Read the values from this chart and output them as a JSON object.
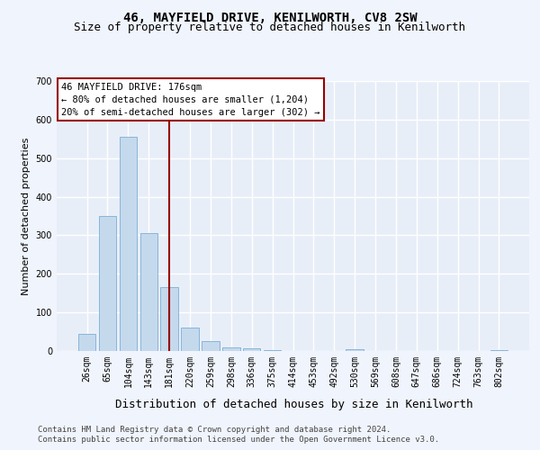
{
  "title1": "46, MAYFIELD DRIVE, KENILWORTH, CV8 2SW",
  "title2": "Size of property relative to detached houses in Kenilworth",
  "xlabel": "Distribution of detached houses by size in Kenilworth",
  "ylabel": "Number of detached properties",
  "categories": [
    "26sqm",
    "65sqm",
    "104sqm",
    "143sqm",
    "181sqm",
    "220sqm",
    "259sqm",
    "298sqm",
    "336sqm",
    "375sqm",
    "414sqm",
    "453sqm",
    "492sqm",
    "530sqm",
    "569sqm",
    "608sqm",
    "647sqm",
    "686sqm",
    "724sqm",
    "763sqm",
    "802sqm"
  ],
  "values": [
    45,
    350,
    555,
    305,
    165,
    60,
    25,
    10,
    7,
    3,
    0,
    0,
    0,
    5,
    0,
    0,
    0,
    0,
    0,
    0,
    3
  ],
  "bar_color": "#c5d9ed",
  "bar_edge_color": "#7bafd4",
  "vline_index": 4,
  "vline_color": "#990000",
  "annotation_box_color": "#990000",
  "annotation_text": "46 MAYFIELD DRIVE: 176sqm\n← 80% of detached houses are smaller (1,204)\n20% of semi-detached houses are larger (302) →",
  "ylim": [
    0,
    700
  ],
  "yticks": [
    0,
    100,
    200,
    300,
    400,
    500,
    600,
    700
  ],
  "footnote1": "Contains HM Land Registry data © Crown copyright and database right 2024.",
  "footnote2": "Contains public sector information licensed under the Open Government Licence v3.0.",
  "bg_color": "#f0f4fc",
  "plot_bg_color": "#e8eef8",
  "grid_color": "#ffffff",
  "title1_fontsize": 10,
  "title2_fontsize": 9,
  "xlabel_fontsize": 9,
  "ylabel_fontsize": 8,
  "tick_fontsize": 7,
  "annotation_fontsize": 7.5,
  "footnote_fontsize": 6.5
}
